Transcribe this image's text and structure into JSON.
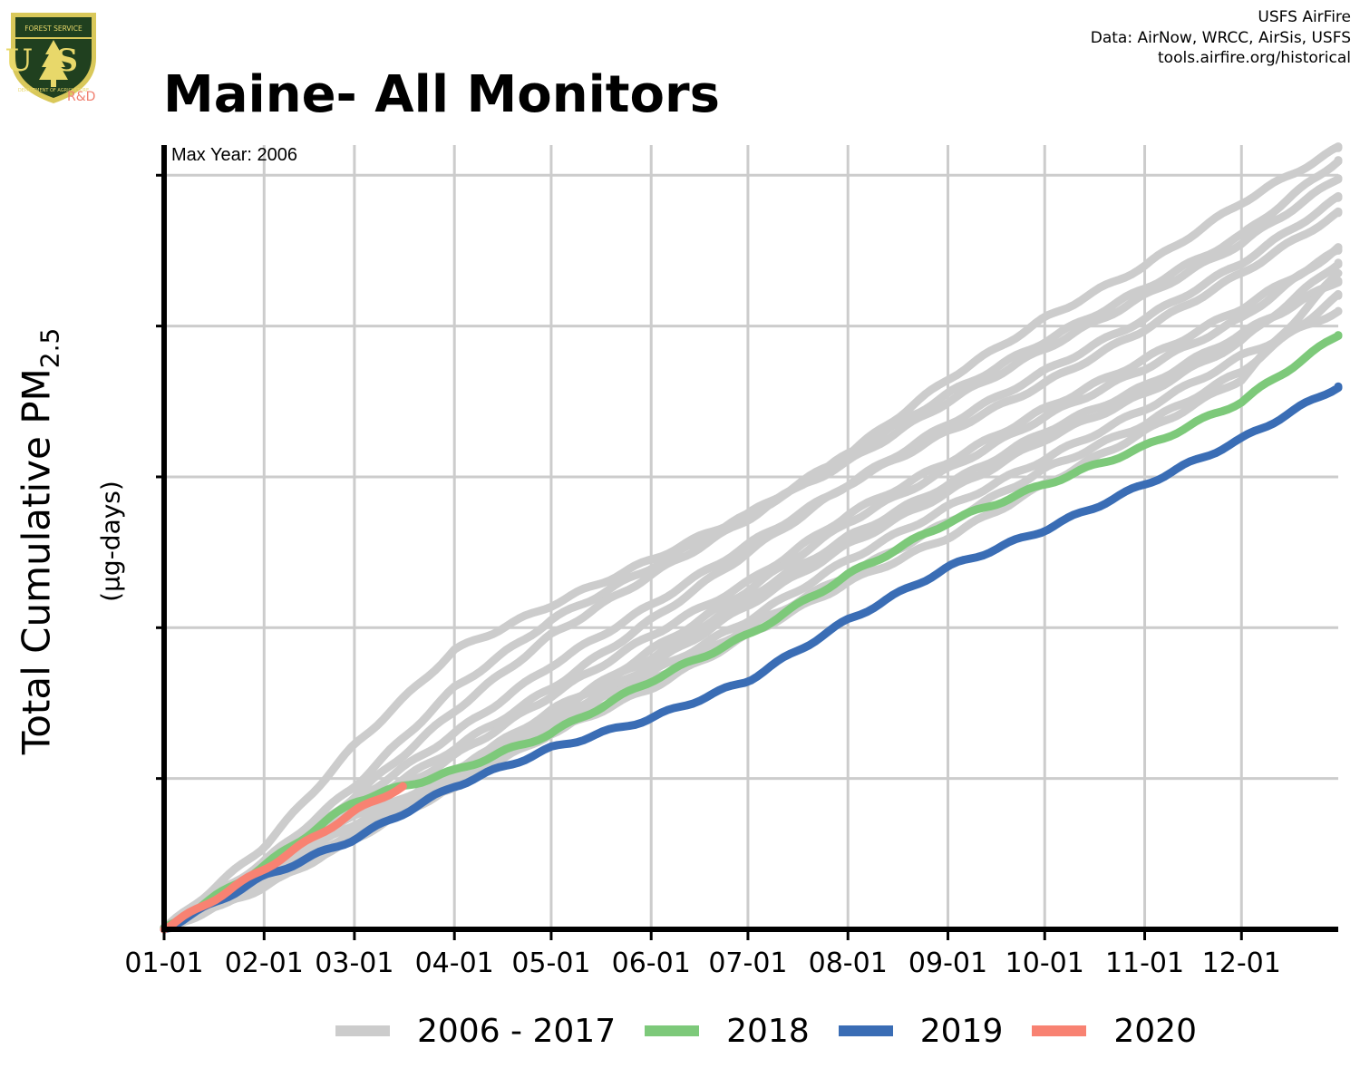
{
  "header": {
    "title": "Maine- All Monitors",
    "credit_lines": [
      "USFS AirFire",
      "Data: AirNow, WRCC, AirSis, USFS",
      "tools.airfire.org/historical"
    ],
    "logo": {
      "letters": "US",
      "top_text": "FOREST SERVICE",
      "bottom_text": "DEPARTMENT OF AGRICULTURE",
      "sub": "R&D"
    }
  },
  "annotation": "Max Year: 2006",
  "colors": {
    "gray": "#cccccc",
    "2018": "#7dc97a",
    "2019": "#3a6db5",
    "2020": "#f88272",
    "grid": "#cccccc",
    "axis": "#000000"
  },
  "chart_data": {
    "type": "line",
    "title": "Maine- All Monitors",
    "xlabel": "",
    "ylabel": "Total Cumulative PM2.5",
    "ylabel_main": "Total Cumulative PM",
    "ylabel_sub": "2.5",
    "yunit": "(µg-days)",
    "x_type": "day-of-year",
    "xlim": [
      "01-01",
      "12-31"
    ],
    "ylim": [
      0,
      5.2
    ],
    "y_tick_labels_shown": false,
    "x_ticks": [
      {
        "label": "01-01",
        "day": 1
      },
      {
        "label": "02-01",
        "day": 32
      },
      {
        "label": "03-01",
        "day": 60
      },
      {
        "label": "04-01",
        "day": 91
      },
      {
        "label": "05-01",
        "day": 121
      },
      {
        "label": "06-01",
        "day": 152
      },
      {
        "label": "07-01",
        "day": 182
      },
      {
        "label": "08-01",
        "day": 213
      },
      {
        "label": "09-01",
        "day": 244
      },
      {
        "label": "10-01",
        "day": 274
      },
      {
        "label": "11-01",
        "day": 305
      },
      {
        "label": "12-01",
        "day": 335
      }
    ],
    "grid": true,
    "legend_position": "bottom",
    "legend": [
      "2006 - 2017",
      "2018",
      "2019",
      "2020"
    ],
    "series": [
      {
        "group": "2006 - 2017",
        "color": "#cccccc",
        "days": [
          1,
          32,
          60,
          91,
          121,
          152,
          182,
          213,
          244,
          274,
          305,
          335,
          365
        ],
        "values": [
          0,
          0.55,
          1.22,
          1.85,
          2.15,
          2.45,
          2.75,
          3.15,
          3.65,
          4.05,
          4.4,
          4.82,
          5.18
        ]
      },
      {
        "group": "2006 - 2017",
        "color": "#cccccc",
        "days": [
          1,
          32,
          60,
          91,
          121,
          152,
          182,
          213,
          244,
          274,
          305,
          335,
          365
        ],
        "values": [
          0,
          0.45,
          0.95,
          1.6,
          2.05,
          2.4,
          2.75,
          3.1,
          3.5,
          3.85,
          4.2,
          4.55,
          4.98
        ]
      },
      {
        "group": "2006 - 2017",
        "color": "#cccccc",
        "days": [
          1,
          32,
          60,
          91,
          121,
          152,
          182,
          213,
          244,
          274,
          305,
          335,
          365
        ],
        "values": [
          0,
          0.4,
          0.88,
          1.45,
          1.95,
          2.35,
          2.72,
          3.15,
          3.55,
          3.9,
          4.25,
          4.6,
          5.1
        ]
      },
      {
        "group": "2006 - 2017",
        "color": "#cccccc",
        "days": [
          1,
          32,
          60,
          91,
          121,
          152,
          182,
          213,
          244,
          274,
          305,
          335,
          365
        ],
        "values": [
          0,
          0.42,
          0.8,
          1.2,
          1.6,
          2.05,
          2.5,
          2.95,
          3.3,
          3.62,
          3.98,
          4.35,
          4.75
        ]
      },
      {
        "group": "2006 - 2017",
        "color": "#cccccc",
        "days": [
          1,
          32,
          60,
          91,
          121,
          152,
          182,
          213,
          244,
          274,
          305,
          335,
          365
        ],
        "values": [
          0,
          0.38,
          0.75,
          1.15,
          1.55,
          1.95,
          2.3,
          2.75,
          3.1,
          3.45,
          3.78,
          4.12,
          4.5
        ]
      },
      {
        "group": "2006 - 2017",
        "color": "#cccccc",
        "days": [
          1,
          32,
          60,
          91,
          121,
          152,
          182,
          213,
          244,
          274,
          305,
          335,
          365
        ],
        "values": [
          0,
          0.35,
          0.7,
          1.05,
          1.45,
          1.8,
          2.2,
          2.6,
          2.95,
          3.3,
          3.6,
          3.95,
          4.3
        ]
      },
      {
        "group": "2006 - 2017",
        "color": "#cccccc",
        "days": [
          1,
          32,
          60,
          91,
          121,
          152,
          182,
          213,
          244,
          274,
          305,
          335,
          365
        ],
        "values": [
          0,
          0.3,
          0.62,
          0.95,
          1.35,
          1.7,
          2.05,
          2.45,
          2.8,
          3.12,
          3.45,
          3.8,
          4.1
        ]
      },
      {
        "group": "2006 - 2017",
        "color": "#cccccc",
        "days": [
          1,
          32,
          60,
          91,
          121,
          152,
          182,
          213,
          244,
          274,
          305,
          335,
          365
        ],
        "values": [
          0,
          0.32,
          0.6,
          1.0,
          1.3,
          1.65,
          2.0,
          2.35,
          2.7,
          3.05,
          3.35,
          3.7,
          4.2
        ]
      },
      {
        "group": "2006 - 2017",
        "color": "#cccccc",
        "days": [
          1,
          32,
          60,
          91,
          121,
          152,
          182,
          213,
          244,
          274,
          305,
          335,
          365
        ],
        "values": [
          0,
          0.28,
          0.6,
          0.95,
          1.3,
          1.6,
          1.95,
          2.3,
          2.6,
          2.95,
          3.3,
          3.65,
          4.35
        ]
      },
      {
        "group": "2006 - 2017",
        "color": "#cccccc",
        "days": [
          1,
          32,
          60,
          91,
          121,
          152,
          182,
          213,
          244,
          274,
          305,
          335,
          365
        ],
        "values": [
          0,
          0.3,
          0.62,
          1.0,
          1.38,
          1.75,
          2.15,
          2.55,
          2.9,
          3.25,
          3.55,
          3.9,
          4.42
        ]
      },
      {
        "group": "2006 - 2017",
        "color": "#cccccc",
        "days": [
          1,
          32,
          60,
          91,
          121,
          152,
          182,
          213,
          244,
          274,
          305,
          335,
          365
        ],
        "values": [
          0,
          0.33,
          0.65,
          1.05,
          1.42,
          1.85,
          2.25,
          2.7,
          3.05,
          3.4,
          3.72,
          4.05,
          4.52
        ]
      },
      {
        "group": "2006 - 2017",
        "color": "#cccccc",
        "days": [
          1,
          32,
          60,
          91,
          121,
          152,
          182,
          213,
          244,
          274,
          305,
          335,
          365
        ],
        "values": [
          0,
          0.4,
          0.85,
          1.3,
          1.75,
          2.15,
          2.55,
          2.95,
          3.35,
          3.7,
          4.05,
          4.42,
          4.85
        ]
      },
      {
        "name": "2018",
        "color": "#7dc97a",
        "days": [
          1,
          32,
          60,
          91,
          121,
          152,
          182,
          213,
          244,
          274,
          305,
          335,
          365
        ],
        "values": [
          0,
          0.42,
          0.85,
          1.05,
          1.3,
          1.65,
          1.95,
          2.35,
          2.7,
          2.95,
          3.2,
          3.5,
          3.94
        ]
      },
      {
        "name": "2019",
        "color": "#3a6db5",
        "days": [
          1,
          32,
          60,
          91,
          121,
          152,
          182,
          213,
          244,
          274,
          305,
          335,
          365
        ],
        "values": [
          0,
          0.35,
          0.6,
          0.95,
          1.2,
          1.4,
          1.65,
          2.05,
          2.4,
          2.65,
          2.95,
          3.25,
          3.6
        ]
      },
      {
        "name": "2020",
        "color": "#f88272",
        "days": [
          1,
          32,
          60,
          75
        ],
        "values": [
          0,
          0.4,
          0.78,
          0.95
        ]
      }
    ]
  },
  "legend_items": [
    {
      "label": "2006 - 2017",
      "color": "#cccccc"
    },
    {
      "label": "2018",
      "color": "#7dc97a"
    },
    {
      "label": "2019",
      "color": "#3a6db5"
    },
    {
      "label": "2020",
      "color": "#f88272"
    }
  ]
}
